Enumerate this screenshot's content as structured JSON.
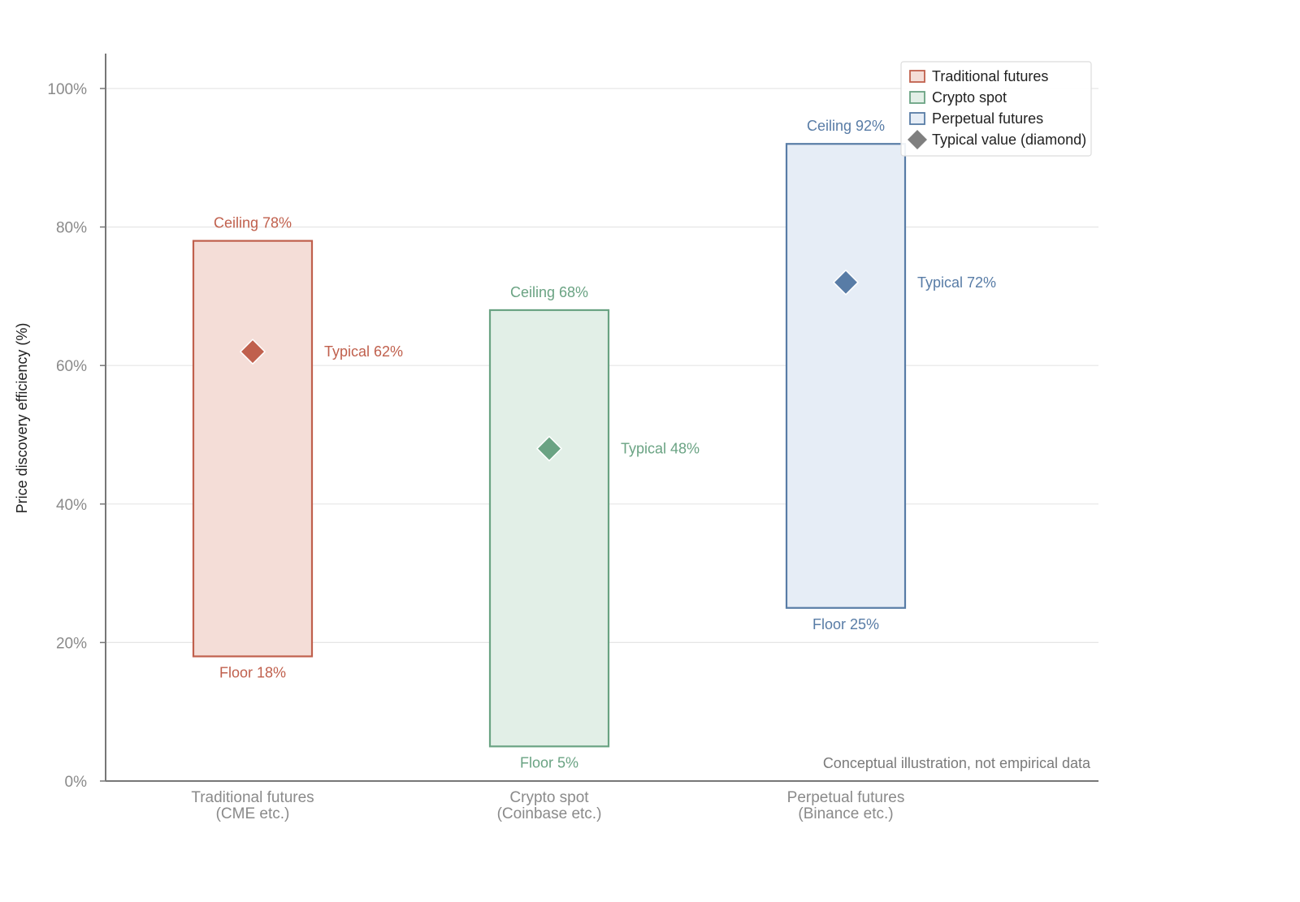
{
  "chart_data": {
    "type": "range-bar",
    "ylabel": "Price discovery efficiency (%)",
    "ylim": [
      0,
      105
    ],
    "yticks": [
      0,
      20,
      40,
      60,
      80,
      100
    ],
    "ytick_labels": [
      "0%",
      "20%",
      "40%",
      "60%",
      "80%",
      "100%"
    ],
    "grid": true,
    "categories": [
      {
        "line1": "Traditional futures",
        "line2": "(CME etc.)"
      },
      {
        "line1": "Crypto spot",
        "line2": "(Coinbase etc.)"
      },
      {
        "line1": "Perpetual futures",
        "line2": "(Binance etc.)"
      }
    ],
    "series": [
      {
        "name": "Traditional futures",
        "floor": 18,
        "ceiling": 78,
        "typical": 62,
        "floor_label": "Floor 18%",
        "ceiling_label": "Ceiling 78%",
        "typical_label": "Typical 62%",
        "stroke": "#c0604d",
        "fill": "#f4ddd7"
      },
      {
        "name": "Crypto spot",
        "floor": 5,
        "ceiling": 68,
        "typical": 48,
        "floor_label": "Floor 5%",
        "ceiling_label": "Ceiling 68%",
        "typical_label": "Typical 48%",
        "stroke": "#6aa383",
        "fill": "#e2efe7"
      },
      {
        "name": "Perpetual futures",
        "floor": 25,
        "ceiling": 92,
        "typical": 72,
        "floor_label": "Floor 25%",
        "ceiling_label": "Ceiling 92%",
        "typical_label": "Typical 72%",
        "stroke": "#587ca6",
        "fill": "#e6edf6"
      }
    ],
    "legend": {
      "position": "top-right",
      "typical_entry": "Typical value (diamond)",
      "typical_color": "#7f7f7f"
    },
    "annotation": "Conceptual illustration, not empirical data"
  }
}
